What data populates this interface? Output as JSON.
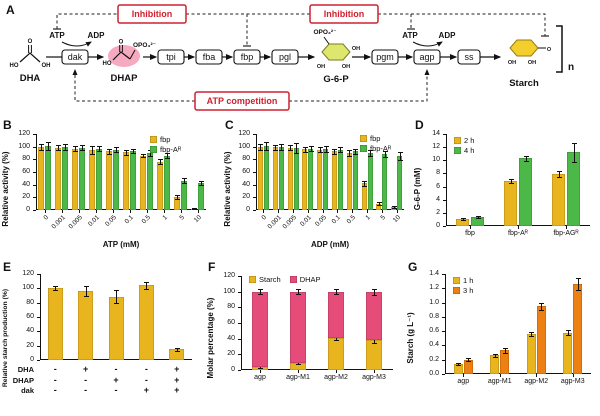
{
  "labels": {
    "A": "A",
    "B": "B",
    "C": "C",
    "D": "D",
    "E": "E",
    "F": "F",
    "G": "G"
  },
  "colors": {
    "red_accent": "#cf2030",
    "yellow": "#e9b51f",
    "green": "#4cb848",
    "pink": "#e64c7a",
    "orange": "#ec8012",
    "dhap_highlight": "#f5aabf",
    "g6p_ring": "#dde76e",
    "starch_ring": "#f2cf2c"
  },
  "panelA": {
    "metabolites": {
      "dha": "DHA",
      "dhap": "DHAP",
      "g6p": "G-6-P",
      "starch": "Starch"
    },
    "enzymes": {
      "dak": "dak",
      "tpi": "tpi",
      "fba": "fba",
      "fbp": "fbp",
      "pgl": "pgl",
      "pgm": "pgm",
      "agp": "agp",
      "ss": "ss"
    },
    "cofactors": {
      "atp": "ATP",
      "adp": "ADP"
    },
    "annotations": {
      "inhibition": "Inhibition",
      "atp_competition": "ATP competition",
      "repeat_n": "n"
    },
    "structures": {
      "ho": "HO",
      "oh": "OH",
      "o": "O",
      "phosphate": "OPO₃²⁻"
    }
  },
  "chart_data": [
    {
      "id": "B",
      "type": "bar",
      "group_mode": "grouped",
      "xlabel": "ATP (mM)",
      "ylabel": "Relative activity (%)",
      "ylim": [
        0,
        120
      ],
      "yticks": [
        0,
        20,
        40,
        60,
        80,
        100,
        120
      ],
      "categories": [
        "0",
        "0.001",
        "0.005",
        "0.01",
        "0.05",
        "0.1",
        "0.5",
        "1",
        "5",
        "10"
      ],
      "series": [
        {
          "name": "fbp",
          "color": "#e9b51f",
          "values": [
            100,
            98,
            97,
            95,
            93,
            91,
            86,
            76,
            20,
            2
          ],
          "errors": [
            5,
            4,
            4,
            6,
            4,
            4,
            3,
            4,
            3,
            1
          ]
        },
        {
          "name": "fbp-Aᴿ",
          "color": "#4cb848",
          "values": [
            101,
            99,
            98,
            97,
            95,
            93,
            90,
            86,
            46,
            43
          ],
          "errors": [
            6,
            5,
            4,
            4,
            4,
            3,
            4,
            4,
            4,
            3
          ]
        }
      ],
      "legend_position": "top-right"
    },
    {
      "id": "C",
      "type": "bar",
      "group_mode": "grouped",
      "xlabel": "ADP (mM)",
      "ylabel": "Relative activity (%)",
      "ylim": [
        0,
        120
      ],
      "yticks": [
        0,
        20,
        40,
        60,
        80,
        100,
        120
      ],
      "categories": [
        "0",
        "0.001",
        "0.005",
        "0.01",
        "0.05",
        "0.1",
        "0.5",
        "1",
        "5",
        "10"
      ],
      "series": [
        {
          "name": "fbp",
          "color": "#e9b51f",
          "values": [
            100,
            99,
            98,
            96,
            95,
            93,
            90,
            42,
            10,
            5
          ],
          "errors": [
            5,
            4,
            4,
            4,
            4,
            4,
            5,
            4,
            2,
            2
          ]
        },
        {
          "name": "fbp-Aᴿ",
          "color": "#4cb848",
          "values": [
            101,
            99,
            98,
            97,
            96,
            95,
            93,
            90,
            88,
            85
          ],
          "errors": [
            6,
            5,
            8,
            4,
            5,
            4,
            4,
            5,
            5,
            6
          ]
        }
      ],
      "legend_position": "top-right"
    },
    {
      "id": "D",
      "type": "bar",
      "group_mode": "grouped",
      "xlabel": "",
      "ylabel": "G-6-P (mM)",
      "ylim": [
        0,
        14
      ],
      "yticks": [
        0,
        2,
        4,
        6,
        8,
        10,
        12,
        14
      ],
      "categories": [
        "fbp",
        "fbp-Aᴿ",
        "fbp-AGᴿ"
      ],
      "series": [
        {
          "name": "2 h",
          "color": "#e9b51f",
          "values": [
            1.1,
            6.9,
            7.9
          ],
          "errors": [
            0.15,
            0.3,
            0.4
          ]
        },
        {
          "name": "4 h",
          "color": "#4cb848",
          "values": [
            1.3,
            10.3,
            11.2
          ],
          "errors": [
            0.15,
            0.4,
            1.5
          ]
        }
      ],
      "legend_position": "top-left"
    },
    {
      "id": "E",
      "type": "bar",
      "group_mode": "single",
      "xlabel": "",
      "ylabel": "Relative starch production (%)",
      "ylim": [
        0,
        120
      ],
      "yticks": [
        0,
        20,
        40,
        60,
        80,
        100,
        120
      ],
      "categories": [
        "",
        "",
        "",
        "",
        ""
      ],
      "series": [
        {
          "name": "starch production",
          "color": "#e9b51f",
          "values": [
            100,
            96,
            88,
            104,
            15
          ],
          "errors": [
            3,
            7,
            9,
            5,
            2
          ]
        }
      ],
      "conditions": {
        "rows": [
          {
            "label": "DHA",
            "values": [
              "-",
              "+",
              "-",
              "-",
              "+"
            ]
          },
          {
            "label": "DHAP",
            "values": [
              "-",
              "-",
              "+",
              "-",
              "+"
            ]
          },
          {
            "label": "dak",
            "values": [
              "-",
              "-",
              "-",
              "+",
              "+"
            ]
          }
        ]
      },
      "legend_position": "none"
    },
    {
      "id": "F",
      "type": "bar",
      "group_mode": "stacked",
      "xlabel": "",
      "ylabel": "Molar percentage (%)",
      "ylim": [
        0,
        120
      ],
      "yticks": [
        0,
        20,
        40,
        60,
        80,
        100,
        120
      ],
      "categories": [
        "agp",
        "agp-M1",
        "agp-M2",
        "agp-M3"
      ],
      "series": [
        {
          "name": "Starch",
          "color": "#e9b51f",
          "values": [
            4,
            9,
            41,
            38
          ],
          "errors": [
            1,
            1,
            3,
            3
          ]
        },
        {
          "name": "DHAP",
          "color": "#e64c7a",
          "values": [
            96,
            91,
            59,
            62
          ],
          "errors": [
            3,
            3,
            3,
            4
          ]
        }
      ],
      "legend_position": "top"
    },
    {
      "id": "G",
      "type": "bar",
      "group_mode": "grouped",
      "xlabel": "",
      "ylabel": "Starch (g L⁻¹)",
      "ylim": [
        0,
        1.4
      ],
      "yticks": [
        0,
        0.2,
        0.4,
        0.6,
        0.8,
        1.0,
        1.2,
        1.4
      ],
      "categories": [
        "agp",
        "agp-M1",
        "agp-M2",
        "agp-M3"
      ],
      "series": [
        {
          "name": "1 h",
          "color": "#e9b51f",
          "values": [
            0.14,
            0.26,
            0.56,
            0.58
          ],
          "errors": [
            0.02,
            0.02,
            0.03,
            0.03
          ]
        },
        {
          "name": "3 h",
          "color": "#ec8012",
          "values": [
            0.2,
            0.33,
            0.95,
            1.26
          ],
          "errors": [
            0.02,
            0.03,
            0.05,
            0.08
          ]
        }
      ],
      "legend_position": "top-left"
    }
  ]
}
